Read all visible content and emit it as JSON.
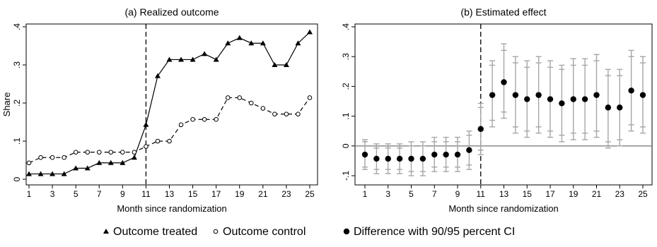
{
  "chart_data": [
    {
      "type": "line",
      "title": "(a) Realized outcome",
      "xlabel": "Month since randomization",
      "ylabel": "Share",
      "xlim": [
        1,
        25
      ],
      "ylim": [
        0,
        0.4
      ],
      "x_ticks": [
        1,
        3,
        5,
        7,
        9,
        11,
        13,
        15,
        17,
        19,
        21,
        23,
        25
      ],
      "y_ticks": [
        0,
        0.1,
        0.2,
        0.3,
        0.4
      ],
      "y_tick_labels": [
        "0",
        ".1",
        ".2",
        ".3",
        ".4"
      ],
      "vline_x": 11,
      "x": [
        1,
        2,
        3,
        4,
        5,
        6,
        7,
        8,
        9,
        10,
        11,
        12,
        13,
        14,
        15,
        16,
        17,
        18,
        19,
        20,
        21,
        22,
        23,
        24,
        25
      ],
      "series": [
        {
          "name": "Outcome treated",
          "marker": "triangle",
          "line": "solid",
          "values": [
            0.014,
            0.014,
            0.014,
            0.014,
            0.029,
            0.029,
            0.043,
            0.043,
            0.043,
            0.057,
            0.143,
            0.271,
            0.314,
            0.314,
            0.314,
            0.329,
            0.314,
            0.357,
            0.371,
            0.357,
            0.357,
            0.3,
            0.3,
            0.357,
            0.386
          ]
        },
        {
          "name": "Outcome control",
          "marker": "hollow-circle",
          "line": "dashed",
          "values": [
            0.043,
            0.057,
            0.057,
            0.057,
            0.071,
            0.071,
            0.071,
            0.071,
            0.071,
            0.071,
            0.086,
            0.1,
            0.1,
            0.143,
            0.157,
            0.157,
            0.157,
            0.214,
            0.214,
            0.2,
            0.186,
            0.171,
            0.171,
            0.171,
            0.214
          ]
        }
      ]
    },
    {
      "type": "scatter",
      "title": "(b) Estimated effect",
      "xlabel": "Month since randomization",
      "ylabel": "",
      "xlim": [
        1,
        25
      ],
      "ylim": [
        -0.1,
        0.4
      ],
      "x_ticks": [
        1,
        3,
        5,
        7,
        9,
        11,
        13,
        15,
        17,
        19,
        21,
        23,
        25
      ],
      "y_ticks": [
        -0.1,
        0,
        0.1,
        0.2,
        0.3,
        0.4
      ],
      "y_tick_labels": [
        "-.1",
        "0",
        ".1",
        ".2",
        ".3",
        ".4"
      ],
      "vline_x": 11,
      "hline_y": 0,
      "x": [
        1,
        2,
        3,
        4,
        5,
        6,
        7,
        8,
        9,
        10,
        11,
        12,
        13,
        14,
        15,
        16,
        17,
        18,
        19,
        20,
        21,
        22,
        23,
        24,
        25
      ],
      "series": [
        {
          "name": "Difference with 90/95 percent CI",
          "marker": "filled-circle",
          "values": [
            -0.029,
            -0.043,
            -0.043,
            -0.043,
            -0.043,
            -0.043,
            -0.029,
            -0.029,
            -0.029,
            -0.014,
            0.057,
            0.171,
            0.214,
            0.171,
            0.157,
            0.171,
            0.157,
            0.143,
            0.157,
            0.157,
            0.171,
            0.129,
            0.129,
            0.186,
            0.171
          ],
          "ci90_low": [
            -0.071,
            -0.079,
            -0.079,
            -0.079,
            -0.086,
            -0.086,
            -0.071,
            -0.071,
            -0.071,
            -0.064,
            -0.014,
            0.086,
            0.114,
            0.064,
            0.05,
            0.064,
            0.05,
            0.036,
            0.043,
            0.043,
            0.05,
            0.014,
            0.021,
            0.071,
            0.064
          ],
          "ci90_high": [
            0.014,
            -0.007,
            -0.007,
            -0.007,
            0.0,
            0.0,
            0.014,
            0.014,
            0.014,
            0.036,
            0.129,
            0.271,
            0.321,
            0.279,
            0.264,
            0.279,
            0.264,
            0.257,
            0.271,
            0.271,
            0.286,
            0.236,
            0.236,
            0.3,
            0.279
          ],
          "ci95_low": [
            -0.079,
            -0.093,
            -0.093,
            -0.093,
            -0.1,
            -0.1,
            -0.086,
            -0.086,
            -0.086,
            -0.079,
            -0.029,
            0.064,
            0.093,
            0.043,
            0.029,
            0.043,
            0.029,
            0.014,
            0.021,
            0.021,
            0.029,
            -0.007,
            0.0,
            0.05,
            0.043
          ],
          "ci95_high": [
            0.021,
            0.007,
            0.007,
            0.007,
            0.014,
            0.014,
            0.029,
            0.029,
            0.029,
            0.05,
            0.143,
            0.286,
            0.343,
            0.3,
            0.286,
            0.3,
            0.286,
            0.271,
            0.293,
            0.293,
            0.307,
            0.257,
            0.257,
            0.321,
            0.3
          ]
        }
      ]
    }
  ],
  "legend": [
    {
      "marker": "triangle",
      "label": "Outcome treated"
    },
    {
      "marker": "hollow-circle",
      "label": "Outcome control"
    },
    {
      "marker": "filled-circle",
      "label": "Difference with 90/95 percent CI"
    }
  ],
  "legend_position": "bottom",
  "colors": {
    "main": "#000000",
    "ci": "#a6a6a6",
    "zero_line": "#808080"
  }
}
